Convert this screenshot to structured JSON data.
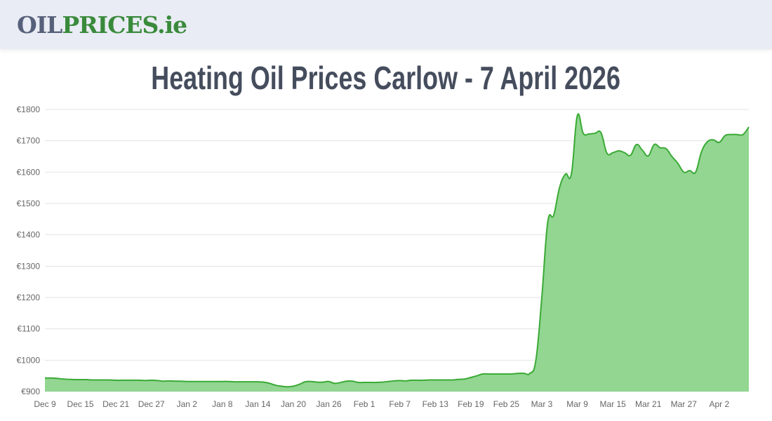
{
  "header": {
    "logo_part1": "OIL",
    "logo_part2": "PRICES.ie"
  },
  "title": "Heating Oil Prices Carlow - 7 April 2026",
  "chart_data": {
    "type": "area",
    "title": "Heating Oil Prices Carlow - 7 April 2026",
    "xlabel": "",
    "ylabel": "",
    "ylim": [
      900,
      1800
    ],
    "y_ticks": [
      "€900",
      "€1000",
      "€1100",
      "€1200",
      "€1300",
      "€1400",
      "€1500",
      "€1600",
      "€1700",
      "€1800"
    ],
    "y_tick_values": [
      900,
      1000,
      1100,
      1200,
      1300,
      1400,
      1500,
      1600,
      1700,
      1800
    ],
    "x_ticks": [
      "Dec 9",
      "Dec 15",
      "Dec 21",
      "Dec 27",
      "Jan 2",
      "Jan 8",
      "Jan 14",
      "Jan 20",
      "Jan 26",
      "Feb 1",
      "Feb 7",
      "Feb 13",
      "Feb 19",
      "Feb 25",
      "Mar 3",
      "Mar 9",
      "Mar 15",
      "Mar 21",
      "Mar 27",
      "Apr 2"
    ],
    "grid": true,
    "line_color": "#3aaa35",
    "fill_color": "#92d692",
    "x": [
      "Dec 9",
      "Dec 10",
      "Dec 11",
      "Dec 12",
      "Dec 13",
      "Dec 14",
      "Dec 15",
      "Dec 16",
      "Dec 17",
      "Dec 18",
      "Dec 19",
      "Dec 20",
      "Dec 21",
      "Dec 22",
      "Dec 23",
      "Dec 24",
      "Dec 25",
      "Dec 26",
      "Dec 27",
      "Dec 28",
      "Dec 29",
      "Dec 30",
      "Dec 31",
      "Jan 1",
      "Jan 2",
      "Jan 3",
      "Jan 4",
      "Jan 5",
      "Jan 6",
      "Jan 7",
      "Jan 8",
      "Jan 9",
      "Jan 10",
      "Jan 11",
      "Jan 12",
      "Jan 13",
      "Jan 14",
      "Jan 15",
      "Jan 16",
      "Jan 17",
      "Jan 18",
      "Jan 19",
      "Jan 20",
      "Jan 21",
      "Jan 22",
      "Jan 23",
      "Jan 24",
      "Jan 25",
      "Jan 26",
      "Jan 27",
      "Jan 28",
      "Jan 29",
      "Jan 30",
      "Jan 31",
      "Feb 1",
      "Feb 2",
      "Feb 3",
      "Feb 4",
      "Feb 5",
      "Feb 6",
      "Feb 7",
      "Feb 8",
      "Feb 9",
      "Feb 10",
      "Feb 11",
      "Feb 12",
      "Feb 13",
      "Feb 14",
      "Feb 15",
      "Feb 16",
      "Feb 17",
      "Feb 18",
      "Feb 19",
      "Feb 20",
      "Feb 21",
      "Feb 22",
      "Feb 23",
      "Feb 24",
      "Feb 25",
      "Feb 26",
      "Feb 27",
      "Feb 28",
      "Mar 1",
      "Mar 2",
      "Mar 3",
      "Mar 4",
      "Mar 5",
      "Mar 6",
      "Mar 7",
      "Mar 8",
      "Mar 9",
      "Mar 10",
      "Mar 11",
      "Mar 12",
      "Mar 13",
      "Mar 14",
      "Mar 15",
      "Mar 16",
      "Mar 17",
      "Mar 18",
      "Mar 19",
      "Mar 20",
      "Mar 21",
      "Mar 22",
      "Mar 23",
      "Mar 24",
      "Mar 25",
      "Mar 26",
      "Mar 27",
      "Mar 28",
      "Mar 29",
      "Mar 30",
      "Mar 31",
      "Apr 1",
      "Apr 2",
      "Apr 3",
      "Apr 4",
      "Apr 5",
      "Apr 6",
      "Apr 7"
    ],
    "values": [
      943,
      943,
      942,
      940,
      939,
      938,
      938,
      938,
      937,
      937,
      937,
      937,
      936,
      936,
      936,
      936,
      936,
      935,
      936,
      935,
      933,
      934,
      933,
      933,
      932,
      932,
      932,
      932,
      932,
      932,
      932,
      932,
      931,
      931,
      931,
      931,
      931,
      930,
      926,
      920,
      917,
      915,
      917,
      923,
      931,
      932,
      930,
      930,
      932,
      926,
      929,
      933,
      933,
      929,
      929,
      929,
      929,
      930,
      932,
      934,
      935,
      934,
      936,
      936,
      936,
      937,
      937,
      937,
      937,
      937,
      939,
      940,
      945,
      950,
      956,
      956,
      956,
      956,
      956,
      956,
      958,
      958,
      958,
      1000,
      1200,
      1440,
      1462,
      1551,
      1594,
      1594,
      1780,
      1724,
      1722,
      1724,
      1726,
      1661,
      1662,
      1668,
      1662,
      1654,
      1688,
      1670,
      1652,
      1688,
      1678,
      1675,
      1650,
      1628,
      1600,
      1605,
      1600,
      1665,
      1697,
      1703,
      1695,
      1717,
      1720,
      1720,
      1720,
      1744
    ]
  }
}
